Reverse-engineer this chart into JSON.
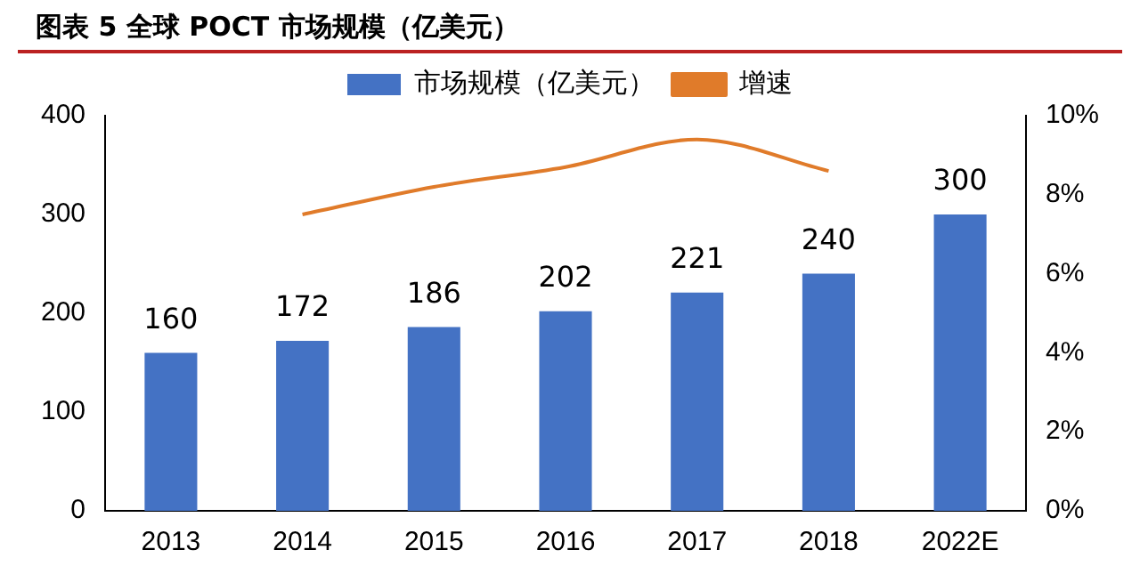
{
  "chart_data": {
    "type": "bar",
    "title": "图表 5   全球 POCT 市场规模（亿美元）",
    "categories": [
      "2013",
      "2014",
      "2015",
      "2016",
      "2017",
      "2018",
      "2022E"
    ],
    "series": [
      {
        "name": "市场规模（亿美元）",
        "color": "#4472c4",
        "values": [
          160,
          172,
          186,
          202,
          221,
          240,
          300
        ],
        "value_labels": [
          "160",
          "172",
          "186",
          "202",
          "221",
          "240",
          "300"
        ]
      },
      {
        "name": "增速",
        "type": "line",
        "axis": "y2",
        "color": "#e07b2a",
        "values": [
          null,
          7.5,
          8.2,
          8.7,
          9.4,
          8.6,
          null
        ]
      }
    ],
    "ylim": [
      0,
      400
    ],
    "yticks": [
      0,
      100,
      200,
      300,
      400
    ],
    "y2lim": [
      0,
      10
    ],
    "y2ticks": [
      {
        "value": 0,
        "label": "0%"
      },
      {
        "value": 2,
        "label": "2%"
      },
      {
        "value": 4,
        "label": "4%"
      },
      {
        "value": 6,
        "label": "6%"
      },
      {
        "value": 8,
        "label": "8%"
      },
      {
        "value": 10,
        "label": "10%"
      }
    ],
    "legend": "top",
    "grid": false,
    "marker": "none"
  }
}
